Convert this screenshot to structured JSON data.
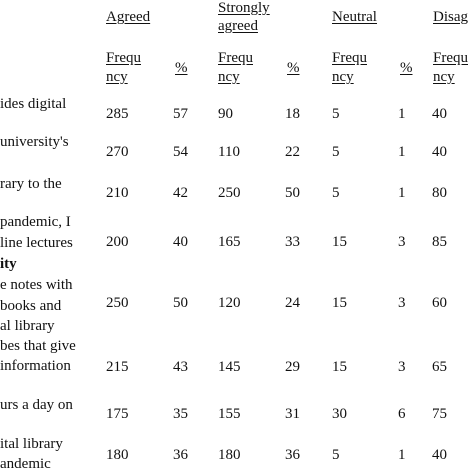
{
  "header": {
    "columns": [
      {
        "title": [
          "Agreed"
        ],
        "sub1": "Frequ",
        "sub2": "ncy",
        "pct": "%"
      },
      {
        "title": [
          "Strongly",
          "agreed"
        ],
        "sub1": "Frequ",
        "sub2": "ncy",
        "pct": "%"
      },
      {
        "title": [
          "Neutral"
        ],
        "sub1": "Frequ",
        "sub2": "ncy",
        "pct": "%"
      },
      {
        "title": [
          "Disag"
        ],
        "sub1": "Frequ",
        "sub2": "ncy",
        "pct": ""
      }
    ]
  },
  "rows": [
    {
      "label": [
        "ides  digital"
      ],
      "values": [
        "285",
        "57",
        "90",
        "18",
        "5",
        "1",
        "40"
      ]
    },
    {
      "label": [
        "university's"
      ],
      "values": [
        "270",
        "54",
        "110",
        "22",
        "5",
        "1",
        "40"
      ]
    },
    {
      "label": [
        "rary  to  the"
      ],
      "values": [
        "210",
        "42",
        "250",
        "50",
        "5",
        "1",
        "80"
      ]
    },
    {
      "label": [
        "pandemic,  I",
        "line lectures",
        "ity"
      ],
      "values": [
        "200",
        "40",
        "165",
        "33",
        "15",
        "3",
        "85"
      ]
    },
    {
      "label": [
        "e notes with",
        "books    and",
        "al library"
      ],
      "values": [
        "250",
        "50",
        "120",
        "24",
        "15",
        "3",
        "60"
      ]
    },
    {
      "label": [
        "bes that give",
        "information"
      ],
      "values": [
        "215",
        "43",
        "145",
        "29",
        "15",
        "3",
        "65"
      ]
    },
    {
      "label": [
        "urs a day on"
      ],
      "values": [
        "175",
        "35",
        "155",
        "31",
        "30",
        "6",
        "75"
      ]
    },
    {
      "label": [
        "ital    library",
        "andemic"
      ],
      "values": [
        "180",
        "36",
        "180",
        "36",
        "5",
        "1",
        "40"
      ]
    }
  ]
}
